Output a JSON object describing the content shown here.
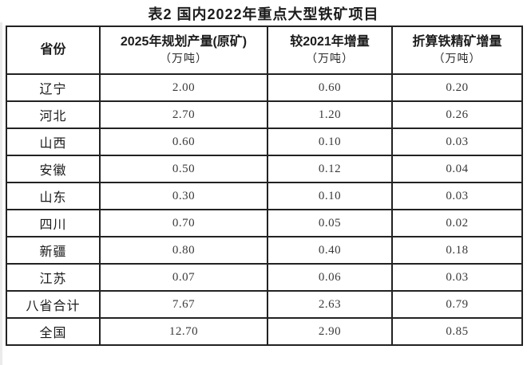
{
  "title": "表2 国内2022年重点大型铁矿项目",
  "table": {
    "columns": [
      {
        "label": "省份",
        "unit": ""
      },
      {
        "label": "2025年规划产量(原矿)",
        "unit": "（万吨）"
      },
      {
        "label": "较2021年增量",
        "unit": "（万吨）"
      },
      {
        "label": "折算铁精矿增量",
        "unit": "（万吨）"
      }
    ],
    "rows": [
      [
        "辽宁",
        "2.00",
        "0.60",
        "0.20"
      ],
      [
        "河北",
        "2.70",
        "1.20",
        "0.26"
      ],
      [
        "山西",
        "0.60",
        "0.10",
        "0.03"
      ],
      [
        "安徽",
        "0.50",
        "0.12",
        "0.04"
      ],
      [
        "山东",
        "0.30",
        "0.10",
        "0.03"
      ],
      [
        "四川",
        "0.70",
        "0.05",
        "0.02"
      ],
      [
        "新疆",
        "0.80",
        "0.40",
        "0.18"
      ],
      [
        "江苏",
        "0.07",
        "0.06",
        "0.03"
      ],
      [
        "八省合计",
        "7.67",
        "2.63",
        "0.79"
      ],
      [
        "全国",
        "12.70",
        "2.90",
        "0.85"
      ]
    ]
  },
  "colors": {
    "border": "#222222",
    "text": "#1c1c1c",
    "number_text": "#3a3a3a",
    "background": "#ffffff"
  }
}
